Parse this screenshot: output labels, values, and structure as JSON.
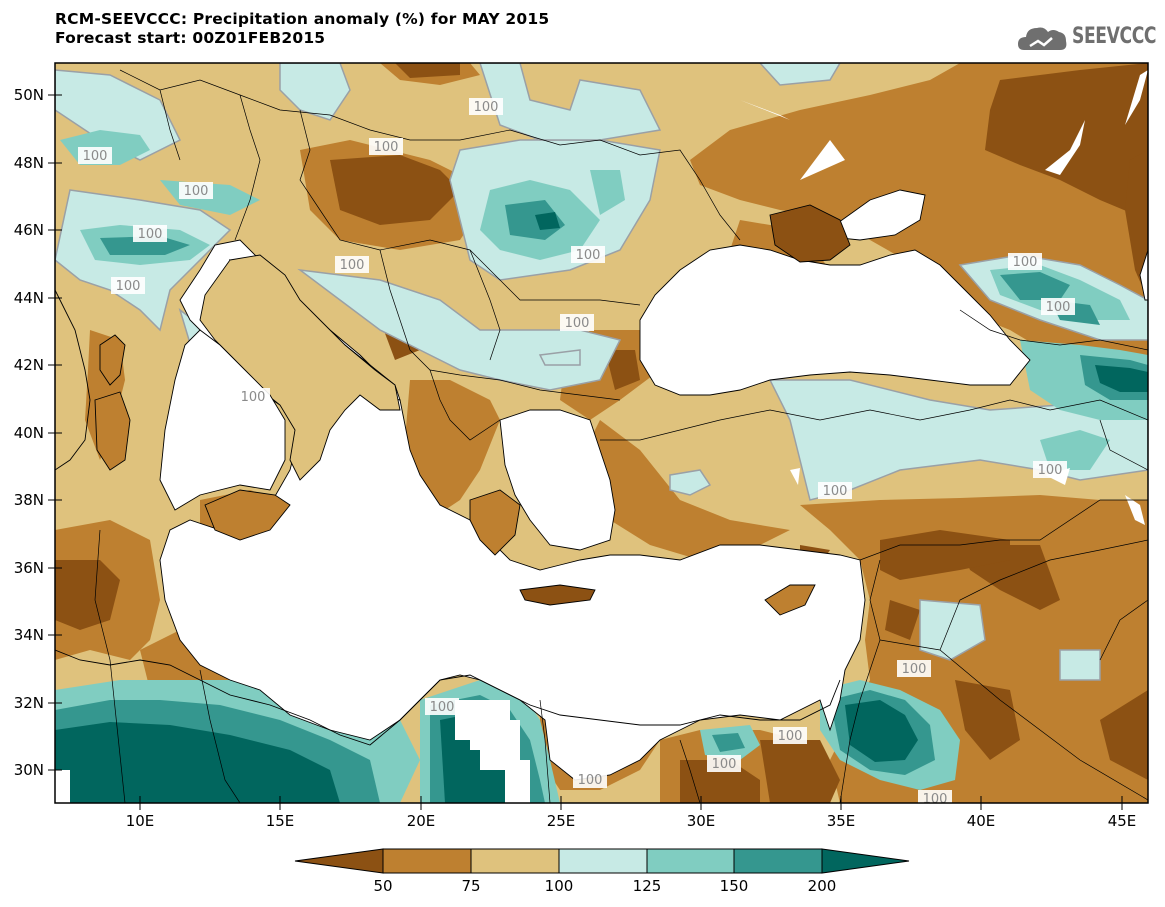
{
  "title": {
    "line1": "RCM-SEEVCCC: Precipitation anomaly (%) for MAY 2015",
    "line2": "Forecast start: 00Z01FEB2015"
  },
  "logo": {
    "text": "SEEVCCC",
    "icon": "cloud-icon"
  },
  "map": {
    "lon_ticks": [
      "10E",
      "15E",
      "20E",
      "25E",
      "30E",
      "35E",
      "40E",
      "45E"
    ],
    "lat_ticks": [
      "30N",
      "32N",
      "34N",
      "36N",
      "38N",
      "40N",
      "42N",
      "44N",
      "46N",
      "48N",
      "50N"
    ],
    "contour_labels": [
      "100",
      "100",
      "100",
      "100",
      "100",
      "100",
      "100",
      "100",
      "100",
      "100",
      "100",
      "100",
      "100",
      "100",
      "100",
      "100",
      "100",
      "100",
      "100",
      "100",
      "100"
    ]
  },
  "colorbar": {
    "labels": [
      "50",
      "75",
      "100",
      "125",
      "150",
      "200"
    ],
    "colors": [
      "#8c5113",
      "#be8030",
      "#dfc27d",
      "#c7eae5",
      "#80cdc1",
      "#35978f",
      "#01665e"
    ]
  }
}
